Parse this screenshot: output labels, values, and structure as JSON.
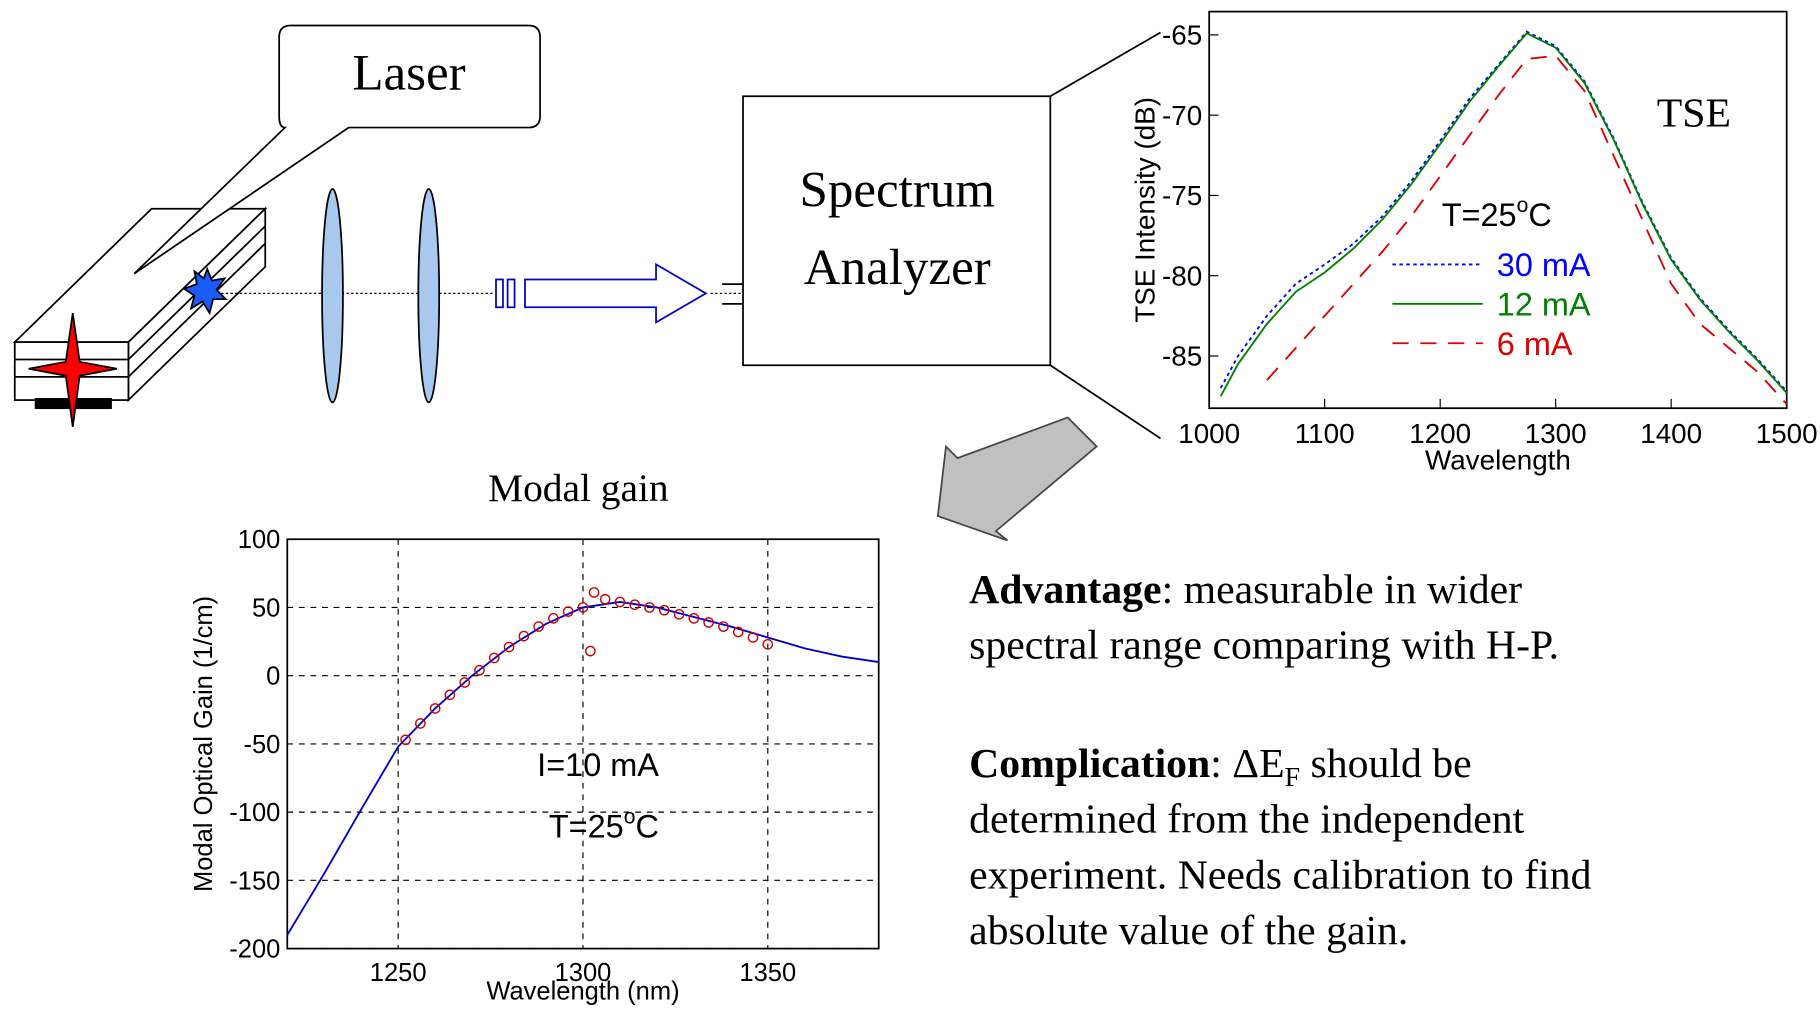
{
  "slide": {
    "laser_label": "Laser",
    "analyzer_label": [
      "Spectrum",
      "Analyzer"
    ],
    "advantage": {
      "term": "Advantage",
      "text": ": measurable in wider",
      "line2": "spectral range comparing with H-P."
    },
    "complication": {
      "term": "Complication",
      "text": ": ΔE",
      "sub": "F",
      "after": " should be",
      "lines": [
        "determined from the independent",
        "experiment. Needs calibration to find",
        "absolute value of the gain."
      ]
    }
  },
  "chart_data": [
    {
      "type": "line",
      "annotation": "TSE",
      "condition": {
        "text": "T=25",
        "sup": "o",
        "unit": "C"
      },
      "xlabel": "Wavelength",
      "ylabel": "TSE Intensity (dB)",
      "x": [
        1010,
        1025,
        1050,
        1075,
        1100,
        1125,
        1150,
        1175,
        1200,
        1225,
        1250,
        1275,
        1300,
        1325,
        1350,
        1375,
        1400,
        1425,
        1450,
        1475,
        1500
      ],
      "series": [
        {
          "name": "30 mA",
          "color": "#0000ff",
          "dash": "dotted",
          "values": [
            -87,
            -85,
            -82.5,
            -80.5,
            -79.3,
            -78,
            -76.3,
            -74.1,
            -71.6,
            -69,
            -66.9,
            -64.8,
            -65.7,
            -67.9,
            -71.4,
            -75.4,
            -78.9,
            -81.4,
            -83.4,
            -85.2,
            -87.2
          ]
        },
        {
          "name": "12 mA",
          "color": "#008000",
          "dash": "solid",
          "values": [
            -87.5,
            -85.5,
            -83,
            -81,
            -79.8,
            -78.3,
            -76.5,
            -74.3,
            -71.8,
            -69.2,
            -67,
            -64.9,
            -65.8,
            -68,
            -71.5,
            -75.5,
            -79,
            -81.5,
            -83.5,
            -85.3,
            -87.3
          ]
        },
        {
          "name": "6 mA",
          "color": "#dd0000",
          "dash": "dashed",
          "values": [
            null,
            null,
            -86.5,
            -84.5,
            -82.5,
            -80.5,
            -78.5,
            -76.3,
            -73.8,
            -71.3,
            -68.8,
            -66.5,
            -66.3,
            -68.5,
            -72.5,
            -76.5,
            -80.5,
            -83,
            -84.5,
            -86,
            -88
          ]
        }
      ],
      "xlim": [
        1000,
        1500
      ],
      "xticks": [
        1000,
        1100,
        1200,
        1300,
        1400,
        1500
      ],
      "ylim": [
        -88.25,
        -63.55
      ],
      "yticks": [
        -85,
        -80,
        -75,
        -70,
        -65
      ],
      "grid": false,
      "legend": "center"
    },
    {
      "type": "line",
      "title": "Modal gain",
      "annotation": "I=10 mA",
      "condition": {
        "text": "T=25",
        "sup": "o",
        "unit": "C"
      },
      "xlabel": "Wavelength (nm)",
      "ylabel": "Modal Optical Gain (1/cm)",
      "series": [
        {
          "color": "#0000cc",
          "dash": "solid",
          "x": [
            1220,
            1230,
            1240,
            1250,
            1260,
            1270,
            1280,
            1290,
            1300,
            1310,
            1320,
            1330,
            1340,
            1350,
            1360,
            1370,
            1380
          ],
          "values": [
            -190,
            -145,
            -98,
            -52,
            -24,
            0,
            21,
            38,
            50,
            54,
            50,
            43,
            36,
            28,
            20,
            14,
            10
          ]
        },
        {
          "color": "#cc0000",
          "marker": "circle",
          "x": [
            1252,
            1256,
            1260,
            1264,
            1268,
            1272,
            1276,
            1280,
            1284,
            1288,
            1292,
            1296,
            1300,
            1302,
            1303,
            1306,
            1310,
            1314,
            1318,
            1322,
            1326,
            1330,
            1334,
            1338,
            1342,
            1346,
            1350
          ],
          "values": [
            -47,
            -35,
            -24,
            -14,
            -5,
            4,
            13,
            21,
            29,
            36,
            42,
            47,
            50,
            18,
            61,
            56,
            54,
            52,
            50,
            48,
            45,
            42,
            39,
            36,
            32,
            28,
            23
          ]
        }
      ],
      "xlim": [
        1220,
        1380
      ],
      "xticks": [
        1250,
        1300,
        1350
      ],
      "ylim": [
        -200,
        100
      ],
      "yticks": [
        -200,
        -150,
        -100,
        -50,
        0,
        50,
        100
      ],
      "grid": true
    }
  ]
}
